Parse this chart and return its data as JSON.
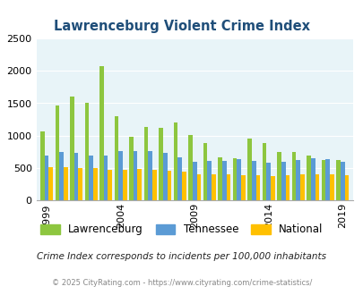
{
  "title": "Lawrenceburg Violent Crime Index",
  "years": [
    1999,
    2000,
    2001,
    2002,
    2003,
    2004,
    2005,
    2006,
    2007,
    2008,
    2009,
    2010,
    2011,
    2012,
    2013,
    2014,
    2015,
    2016,
    2017,
    2018,
    2019
  ],
  "lawrenceburg": [
    1070,
    1470,
    1600,
    1500,
    2070,
    1300,
    990,
    1140,
    1120,
    1200,
    1010,
    890,
    660,
    650,
    960,
    890,
    750,
    750,
    690,
    630,
    630
  ],
  "tennessee": [
    700,
    750,
    730,
    700,
    700,
    760,
    760,
    760,
    740,
    660,
    600,
    610,
    610,
    640,
    610,
    580,
    600,
    620,
    650,
    640,
    600
  ],
  "national": [
    510,
    510,
    500,
    500,
    480,
    480,
    490,
    480,
    460,
    450,
    410,
    400,
    400,
    390,
    390,
    380,
    390,
    400,
    410,
    400,
    390
  ],
  "lawrenceburg_color": "#8DC63F",
  "tennessee_color": "#5B9BD5",
  "national_color": "#FFC000",
  "bg_color": "#E8F4F8",
  "ylim": [
    0,
    2500
  ],
  "yticks": [
    0,
    500,
    1000,
    1500,
    2000,
    2500
  ],
  "xtick_years": [
    1999,
    2004,
    2009,
    2014,
    2019
  ],
  "title_color": "#1F4E79",
  "legend_labels": [
    "Lawrenceburg",
    "Tennessee",
    "National"
  ],
  "subtitle": "Crime Index corresponds to incidents per 100,000 inhabitants",
  "footer": "© 2025 CityRating.com - https://www.cityrating.com/crime-statistics/",
  "bar_width": 0.28
}
